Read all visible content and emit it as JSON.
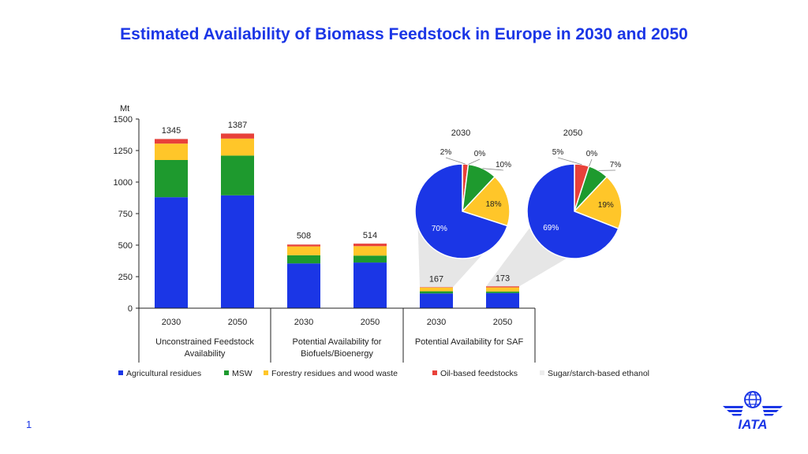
{
  "slide": {
    "title": "Estimated Availability of Biomass Feedstock in Europe in 2030 and 2050",
    "page_number": "1",
    "logo_text": "IATA"
  },
  "colors": {
    "agricultural": "#1b36e6",
    "msw": "#1e9a2e",
    "forestry": "#ffc629",
    "oil": "#e8413a",
    "ethanol": "#ededed",
    "title": "#1b36e6"
  },
  "chart_data": [
    {
      "type": "bar",
      "stacked": true,
      "unit_label": "Mt",
      "ylim": [
        0,
        1500
      ],
      "yticks": [
        0,
        250,
        500,
        750,
        1000,
        1250,
        1500
      ],
      "categories": [
        "2030",
        "2050",
        "2030",
        "2050",
        "2030",
        "2050"
      ],
      "groups": [
        {
          "label": "Unconstrained Feedstock Availability",
          "line1": "Unconstrained Feedstock",
          "line2": "Availability"
        },
        {
          "label": "Potential Availability for Biofuels/Bioenergy",
          "line1": "Potential Availability for",
          "line2": "Biofuels/Bioenergy"
        },
        {
          "label": "Potential Availability for SAF",
          "line1": "Potential Availability for SAF",
          "line2": ""
        }
      ],
      "totals": [
        "1345",
        "1387",
        "508",
        "514",
        "167",
        "173"
      ],
      "series": [
        {
          "key": "agricultural",
          "name": "Agricultural residues",
          "values": [
            880,
            895,
            355,
            362,
            117,
            120
          ]
        },
        {
          "key": "msw",
          "name": "MSW",
          "values": [
            295,
            315,
            65,
            55,
            17,
            12
          ]
        },
        {
          "key": "forestry",
          "name": "Forestry residues and wood waste",
          "values": [
            130,
            135,
            70,
            75,
            30,
            33
          ]
        },
        {
          "key": "oil",
          "name": "Oil-based feedstocks",
          "values": [
            37,
            40,
            15,
            20,
            3,
            8
          ]
        },
        {
          "key": "ethanol",
          "name": "Sugar/starch-based ethanol",
          "values": [
            3,
            2,
            3,
            2,
            0,
            0
          ]
        }
      ]
    },
    {
      "type": "pie",
      "title": "2030",
      "slices": [
        {
          "key": "agricultural",
          "label": "70%",
          "value": 70
        },
        {
          "key": "msw",
          "label": "10%",
          "value": 10
        },
        {
          "key": "forestry",
          "label": "18%",
          "value": 18
        },
        {
          "key": "oil",
          "label": "2%",
          "value": 2
        },
        {
          "key": "ethanol",
          "label": "0%",
          "value": 0
        }
      ]
    },
    {
      "type": "pie",
      "title": "2050",
      "slices": [
        {
          "key": "agricultural",
          "label": "69%",
          "value": 69
        },
        {
          "key": "msw",
          "label": "7%",
          "value": 7
        },
        {
          "key": "forestry",
          "label": "19%",
          "value": 19
        },
        {
          "key": "oil",
          "label": "5%",
          "value": 5
        },
        {
          "key": "ethanol",
          "label": "0%",
          "value": 0
        }
      ]
    }
  ]
}
